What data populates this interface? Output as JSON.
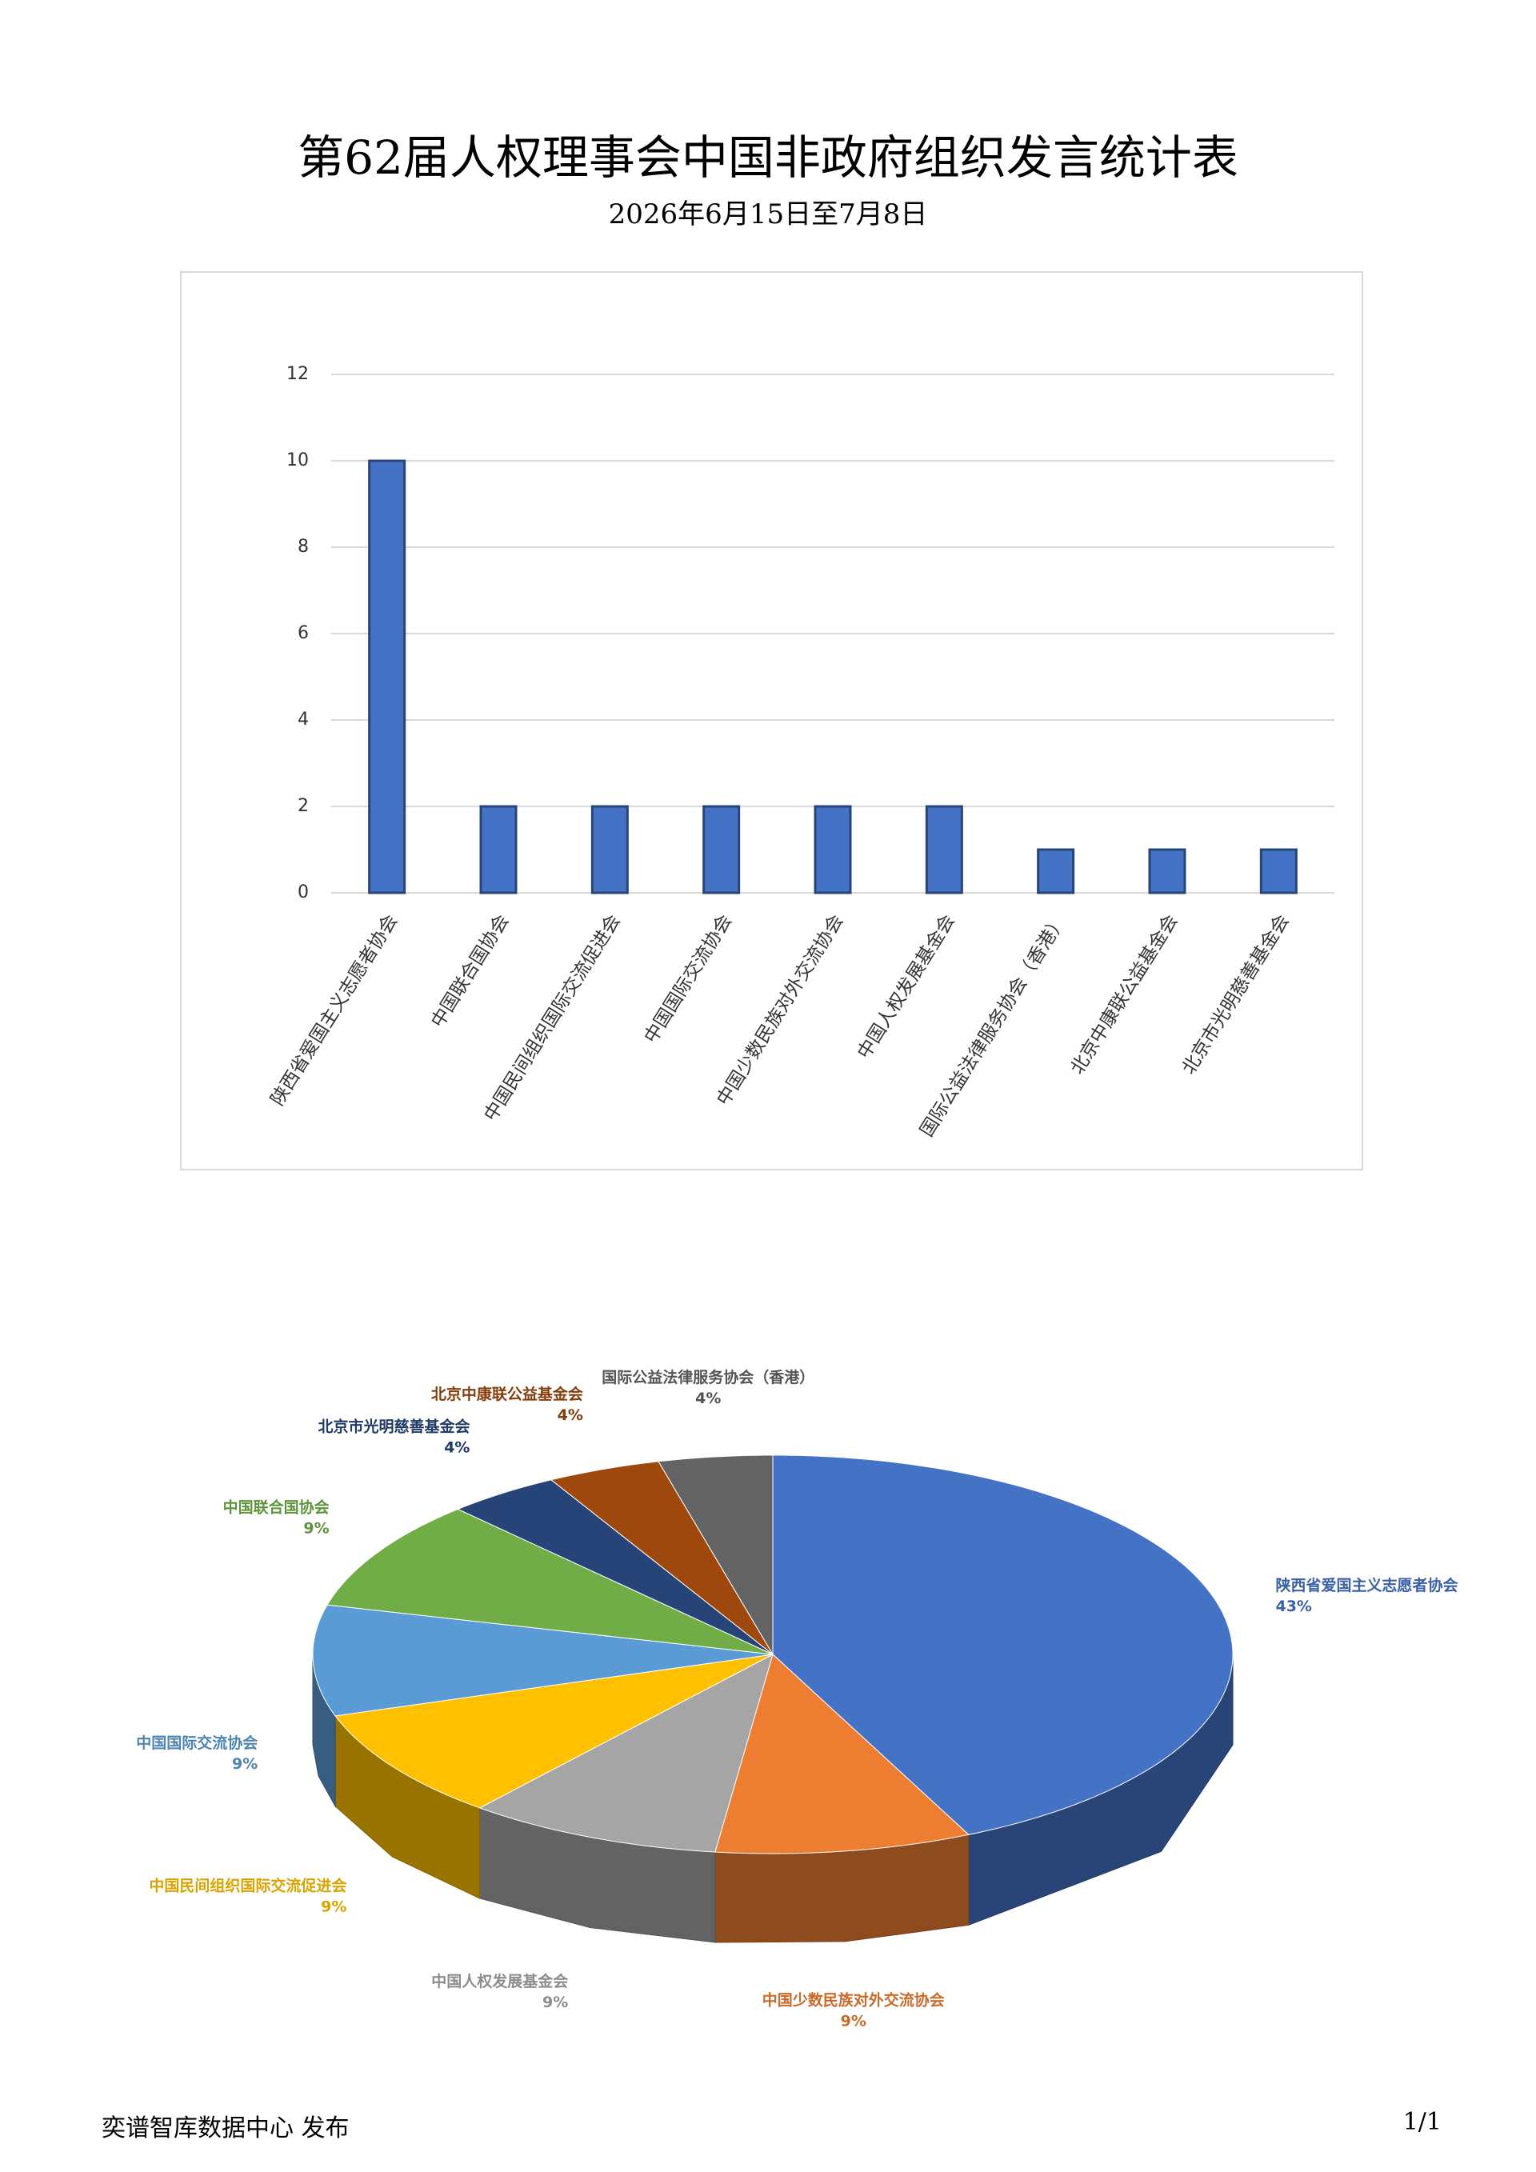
{
  "header": {
    "title": "第62届人权理事会中国非政府组织发言统计表",
    "subtitle": "2026年6月15日至7月8日"
  },
  "chart_data": [
    {
      "type": "bar",
      "categories": [
        "陕西省爱国主义志愿者协会",
        "中国联合国协会",
        "中国民间组织国际交流促进会",
        "中国国际交流协会",
        "中国少数民族对外交流协会",
        "中国人权发展基金会",
        "国际公益法律服务协会（香港）",
        "北京中康联公益基金会",
        "北京市光明慈善基金会"
      ],
      "values": [
        10,
        2,
        2,
        2,
        2,
        2,
        1,
        1,
        1
      ],
      "color": "#4472c4",
      "ylim": [
        0,
        12
      ],
      "yticks": [
        0,
        2,
        4,
        6,
        8,
        10,
        12
      ],
      "grid": true
    },
    {
      "type": "pie",
      "categories": [
        "陕西省爱国主义志愿者协会",
        "中国少数民族对外交流协会",
        "中国人权发展基金会",
        "中国民间组织国际交流促进会",
        "中国国际交流协会",
        "中国联合国协会",
        "北京市光明慈善基金会",
        "北京中康联公益基金会",
        "国际公益法律服务协会（香港）"
      ],
      "values": [
        43,
        9,
        9,
        9,
        9,
        9,
        4,
        4,
        4
      ],
      "value_labels": [
        "43%",
        "9%",
        "9%",
        "9%",
        "9%",
        "9%",
        "4%",
        "4%",
        "4%"
      ],
      "colors": [
        "#4472c4",
        "#ed7d31",
        "#a5a5a5",
        "#ffc000",
        "#5b9bd5",
        "#70ad47",
        "#264478",
        "#9e480e",
        "#636363"
      ]
    }
  ],
  "footer": {
    "publisher": "奕谱智库数据中心  发布",
    "page": "1/1"
  }
}
